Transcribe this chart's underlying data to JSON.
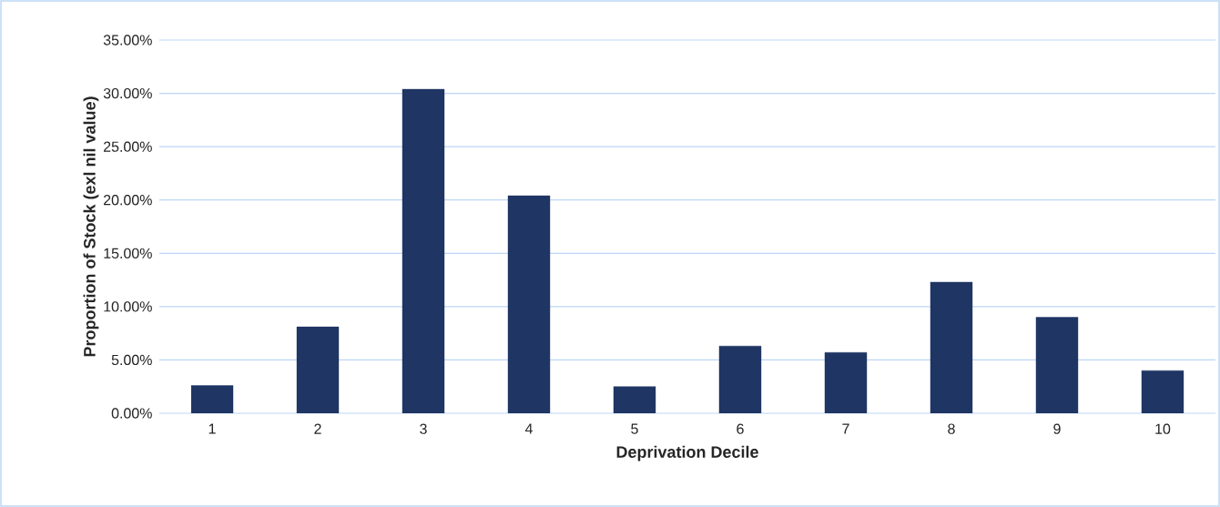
{
  "chart_data": {
    "type": "bar",
    "xlabel": "Deprivation Decile",
    "ylabel": "Proportion of Stock (exl nil value)",
    "categories": [
      "1",
      "2",
      "3",
      "4",
      "5",
      "6",
      "7",
      "8",
      "9",
      "10"
    ],
    "values": [
      2.6,
      8.1,
      30.4,
      20.4,
      2.5,
      6.3,
      5.7,
      12.3,
      9.0,
      4.0
    ],
    "color": "#1f3563",
    "ylim": [
      0,
      35
    ],
    "yticks": [
      {
        "value": 0,
        "label": "0.00%"
      },
      {
        "value": 5,
        "label": "5.00%"
      },
      {
        "value": 10,
        "label": "10.00%"
      },
      {
        "value": 15,
        "label": "15.00%"
      },
      {
        "value": 20,
        "label": "20.00%"
      },
      {
        "value": 25,
        "label": "25.00%"
      },
      {
        "value": 30,
        "label": "30.00%"
      },
      {
        "value": 35,
        "label": "35.00%"
      }
    ],
    "grid": "y"
  }
}
